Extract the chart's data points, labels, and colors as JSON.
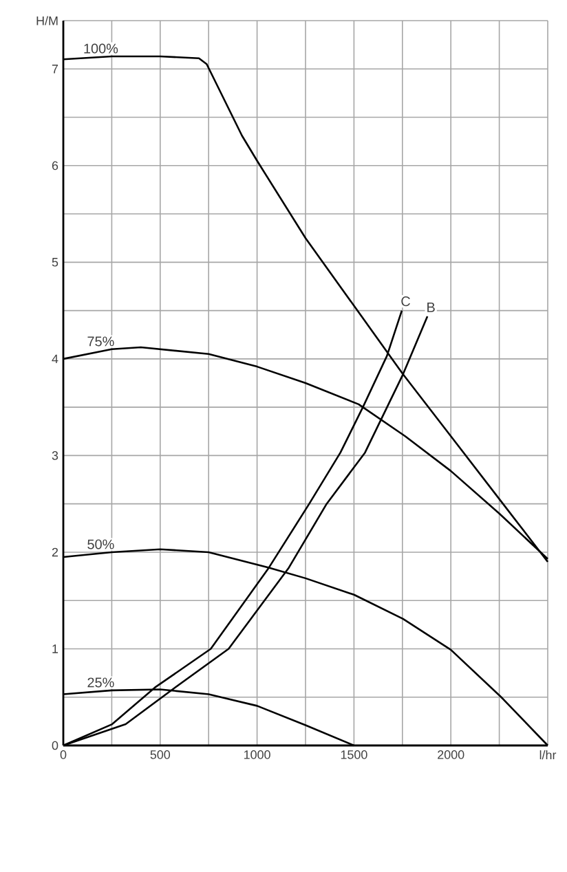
{
  "chart_data": {
    "type": "line",
    "xlim": [
      0,
      2500
    ],
    "ylim": [
      0,
      7.5
    ],
    "xticks": [
      0,
      {
        "value": 250,
        "label": null
      },
      500,
      {
        "value": 750,
        "label": null
      },
      1000,
      {
        "value": 1250,
        "label": null
      },
      1500,
      {
        "value": 1750,
        "label": null
      },
      2000,
      {
        "value": 2250,
        "label": null
      },
      {
        "value": 2500,
        "label": "l/hr"
      }
    ],
    "yticks": [
      0,
      {
        "value": 0.5,
        "label": null
      },
      1,
      {
        "value": 1.5,
        "label": null
      },
      2,
      {
        "value": 2.5,
        "label": null
      },
      3,
      {
        "value": 3.5,
        "label": null
      },
      4,
      {
        "value": 4.5,
        "label": null
      },
      5,
      {
        "value": 5.5,
        "label": null
      },
      6,
      {
        "value": 6.5,
        "label": null
      },
      7,
      {
        "value": 7.5,
        "label": "H/M"
      }
    ],
    "grid": true,
    "marker": "none",
    "line_style": "solid",
    "series": [
      {
        "name": "100%",
        "color": "#000000",
        "x": [
          0,
          250,
          500,
          700,
          740,
          922,
          1000,
          1250,
          1500,
          1750,
          2000,
          2250,
          2500
        ],
        "values": [
          7.1,
          7.13,
          7.13,
          7.11,
          7.05,
          6.31,
          6.05,
          5.25,
          4.55,
          3.85,
          3.2,
          2.55,
          1.9
        ]
      },
      {
        "name": "75%",
        "color": "#000000",
        "x": [
          0,
          250,
          400,
          750,
          1000,
          1250,
          1524,
          1764,
          2000,
          2250,
          2500
        ],
        "values": [
          4.0,
          4.1,
          4.12,
          4.05,
          3.92,
          3.75,
          3.53,
          3.2,
          2.84,
          2.4,
          1.93
        ]
      },
      {
        "name": "50%",
        "color": "#000000",
        "x": [
          0,
          250,
          500,
          750,
          1061,
          1250,
          1500,
          1753,
          2000,
          2260,
          2500
        ],
        "values": [
          1.95,
          2.0,
          2.03,
          2.0,
          1.84,
          1.73,
          1.56,
          1.31,
          0.99,
          0.5,
          0
        ]
      },
      {
        "name": "25%",
        "color": "#000000",
        "x": [
          0,
          250,
          500,
          750,
          1000,
          1250,
          1500
        ],
        "values": [
          0.53,
          0.57,
          0.58,
          0.53,
          0.41,
          0.21,
          0
        ]
      },
      {
        "name": "C",
        "color": "#000000",
        "x": [
          0,
          252,
          473,
          761,
          1061,
          1269,
          1430,
          1546,
          1670,
          1747
        ],
        "values": [
          0,
          0.22,
          0.6,
          1.0,
          1.84,
          2.5,
          3.03,
          3.5,
          4.03,
          4.5
        ]
      },
      {
        "name": "B",
        "color": "#000000",
        "x": [
          0,
          322,
          577,
          853,
          1164,
          1359,
          1557,
          1753,
          1879
        ],
        "values": [
          0,
          0.22,
          0.6,
          1.0,
          1.84,
          2.5,
          3.03,
          3.84,
          4.44
        ]
      }
    ]
  }
}
